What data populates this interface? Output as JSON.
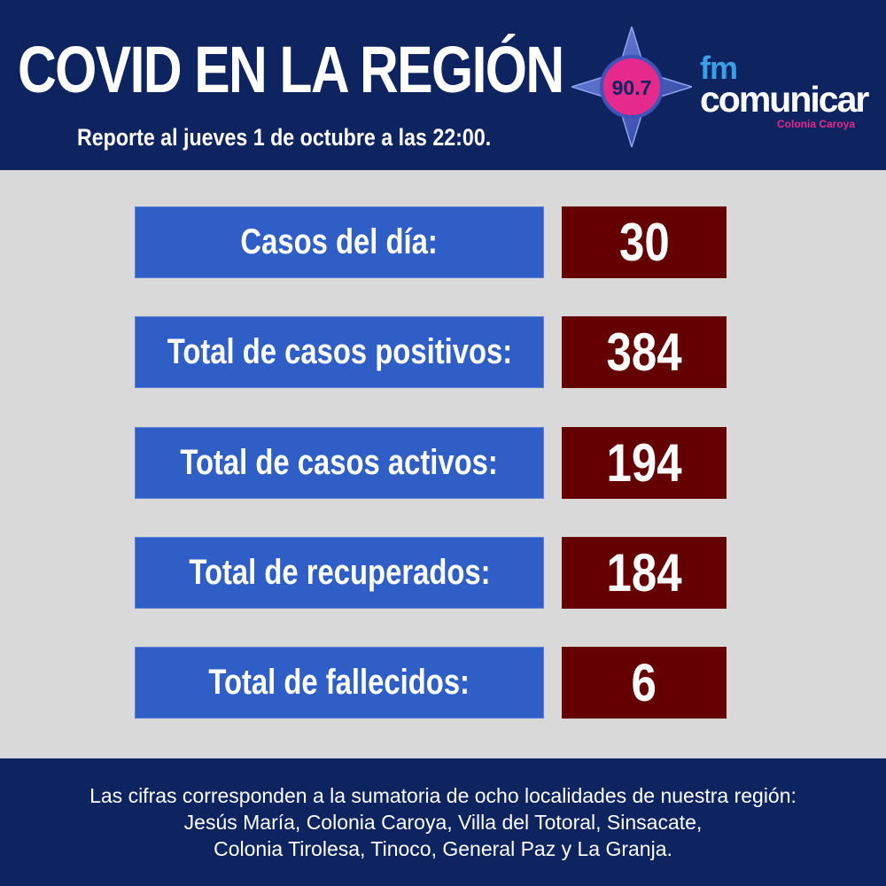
{
  "header": {
    "title": "COVID EN LA REGIÓN",
    "subtitle": "Reporte al jueves 1 de octubre a las 22:00."
  },
  "logo": {
    "frequency": "90.7",
    "fm": "fm",
    "brand": "comunicar",
    "location": "Colonia Caroya",
    "icon": "compass-star-icon",
    "colors": {
      "star": "#3d54b8",
      "circle": "#e6298c",
      "fm": "#3aa0e6",
      "location": "#e6298c"
    }
  },
  "stats": [
    {
      "label": "Casos del día:",
      "value": "30"
    },
    {
      "label": "Total de casos positivos:",
      "value": "384"
    },
    {
      "label": "Total de casos activos:",
      "value": "194"
    },
    {
      "label": "Total de recuperados:",
      "value": "184"
    },
    {
      "label": "Total de fallecidos:",
      "value": "6"
    }
  ],
  "footer": {
    "lines": [
      "Las cifras corresponden a la sumatoria de ocho localidades de nuestra región:",
      "Jesús María, Colonia Caroya, Villa del Totoral, Sinsacate,",
      "Colonia Tirolesa, Tinoco, General Paz y La Granja."
    ]
  },
  "colors": {
    "navy": "#0e2461",
    "label_blue": "#2f5ec7",
    "value_maroon": "#650000",
    "background": "#d9d9d9"
  }
}
